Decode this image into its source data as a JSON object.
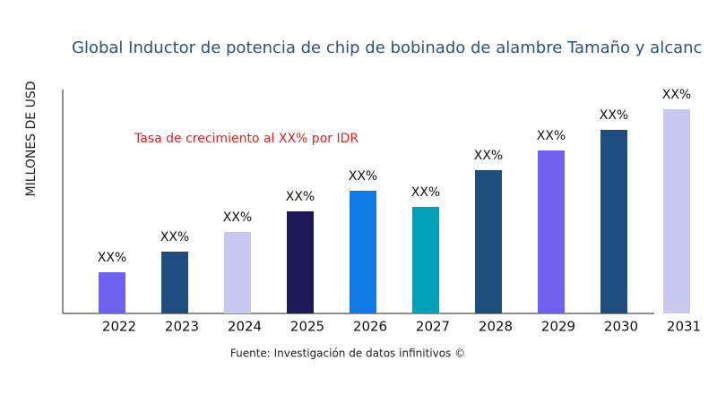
{
  "chart_data": {
    "type": "bar",
    "title": "Global Inductor de potencia de chip de bobinado de alambre Tamaño y alcanc",
    "y_label": "MILLONES DE USD",
    "annotation": "Tasa de crecimiento al XX% por IDR",
    "source": "Fuente: Investigación de datos infinitivos ©",
    "categories": [
      "2022",
      "2023",
      "2024",
      "2025",
      "2026",
      "2027",
      "2028",
      "2029",
      "2030",
      "2031"
    ],
    "values": [
      46,
      69,
      91,
      114,
      137,
      119,
      160,
      182,
      205,
      228
    ],
    "value_labels": [
      "XX%",
      "XX%",
      "XX%",
      "XX%",
      "XX%",
      "XX%",
      "XX%",
      "XX%",
      "XX%",
      "XX%"
    ],
    "colors": [
      "#7060f0",
      "#1f4e7e",
      "#c8c8f0",
      "#1e1a5a",
      "#0f7ae5",
      "#00a0b8",
      "#1f4e7e",
      "#7060f0",
      "#1f4e7e",
      "#c8c8f0"
    ],
    "ylim": [
      0,
      250
    ]
  }
}
